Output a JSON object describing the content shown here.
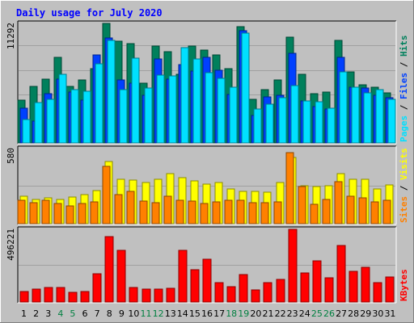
{
  "chart_data": {
    "type": "bar",
    "title": "Daily usage for July 2020",
    "colors": {
      "hits": "#00805c",
      "files": "#0040ff",
      "pages": "#00e0ff",
      "visits": "#ffff00",
      "sites": "#ff8000",
      "kbytes": "#ff0000",
      "weekend_label": "#008040",
      "weekday_label": "#000000"
    },
    "days": [
      "1",
      "2",
      "3",
      "4",
      "5",
      "6",
      "7",
      "8",
      "9",
      "10",
      "11",
      "12",
      "13",
      "14",
      "15",
      "16",
      "17",
      "18",
      "19",
      "20",
      "21",
      "22",
      "23",
      "24",
      "25",
      "26",
      "27",
      "28",
      "29",
      "30",
      "31"
    ],
    "weekend_days": [
      "4",
      "5",
      "11",
      "12",
      "18",
      "19",
      "25",
      "26"
    ],
    "panels": [
      {
        "id": "hits-files-pages",
        "ymax": 11292,
        "ymax_label": "11292",
        "ylim": [
          0,
          11292
        ],
        "legend": [
          {
            "text": "Pages",
            "color": "#00e0ff"
          },
          {
            "text": " / ",
            "color": "#000000"
          },
          {
            "text": "Files",
            "color": "#0040ff"
          },
          {
            "text": " / ",
            "color": "#000000"
          },
          {
            "text": "Hits",
            "color": "#00805c"
          }
        ],
        "series": [
          {
            "name": "Hits",
            "color": "#00805c",
            "values": [
              4050,
              5350,
              6000,
              8050,
              5350,
              5950,
              7050,
              11292,
              9650,
              9350,
              5650,
              9150,
              8650,
              6450,
              9150,
              8750,
              8350,
              7050,
              11000,
              4150,
              5050,
              5950,
              10000,
              6500,
              4650,
              4800,
              9700,
              6700,
              5500,
              5300,
              4700
            ]
          },
          {
            "name": "Files",
            "color": "#0040ff",
            "values": [
              3250,
              2050,
              4650,
              6000,
              4800,
              4050,
              8350,
              9900,
              5950,
              5650,
              4500,
              7950,
              6000,
              7400,
              6800,
              8050,
              6900,
              4550,
              10600,
              2600,
              4350,
              4500,
              8450,
              3950,
              3400,
              3200,
              8100,
              5250,
              5200,
              4500,
              4250
            ]
          },
          {
            "name": "Pages",
            "color": "#00e0ff",
            "values": [
              2250,
              3850,
              4150,
              6500,
              5000,
              4900,
              7500,
              9700,
              5000,
              8000,
              5200,
              6400,
              6300,
              9000,
              7900,
              6600,
              6100,
              5300,
              10400,
              3200,
              3650,
              4300,
              5400,
              3950,
              3900,
              3300,
              6700,
              5250,
              4700,
              5000,
              4100
            ]
          }
        ]
      },
      {
        "id": "visits-sites",
        "ymax": 580,
        "ymax_label": "580",
        "ylim": [
          0,
          580
        ],
        "legend": [
          {
            "text": "Sites",
            "color": "#ff8000"
          },
          {
            "text": " / ",
            "color": "#000000"
          },
          {
            "text": "Visits",
            "color": "#ffff00"
          }
        ],
        "series": [
          {
            "name": "Visits",
            "color": "#ffff00",
            "values": [
              215,
              185,
              200,
              185,
              205,
              225,
              255,
              480,
              345,
              335,
              320,
              340,
              385,
              355,
              330,
              305,
              315,
              270,
              250,
              250,
              245,
              318,
              510,
              295,
              285,
              295,
              385,
              345,
              345,
              270,
              300
            ]
          },
          {
            "name": "Sites",
            "color": "#ff8000",
            "values": [
              180,
              160,
              178,
              153,
              138,
              158,
              168,
              445,
              225,
              250,
              175,
              162,
              215,
              180,
              175,
              158,
              170,
              180,
              178,
              160,
              160,
              170,
              550,
              290,
              150,
              185,
              325,
              210,
              200,
              168,
              180
            ]
          }
        ]
      },
      {
        "id": "kbytes",
        "ymax": 496221,
        "ymax_label": "496221",
        "ylim": [
          0,
          496221
        ],
        "legend": [
          {
            "text": "KBytes",
            "color": "#ff0000"
          }
        ],
        "series": [
          {
            "name": "KBytes",
            "color": "#ff0000",
            "values": [
              71000,
              87000,
              100000,
              97000,
              65000,
              73000,
              195000,
              447000,
              352000,
              100000,
              87000,
              87000,
              95000,
              352000,
              220000,
              290000,
              133000,
              106000,
              187000,
              80000,
              133000,
              152000,
              496221,
              200000,
              280000,
              163000,
              387000,
              210000,
              235000,
              135000,
              170000
            ]
          }
        ]
      }
    ]
  }
}
